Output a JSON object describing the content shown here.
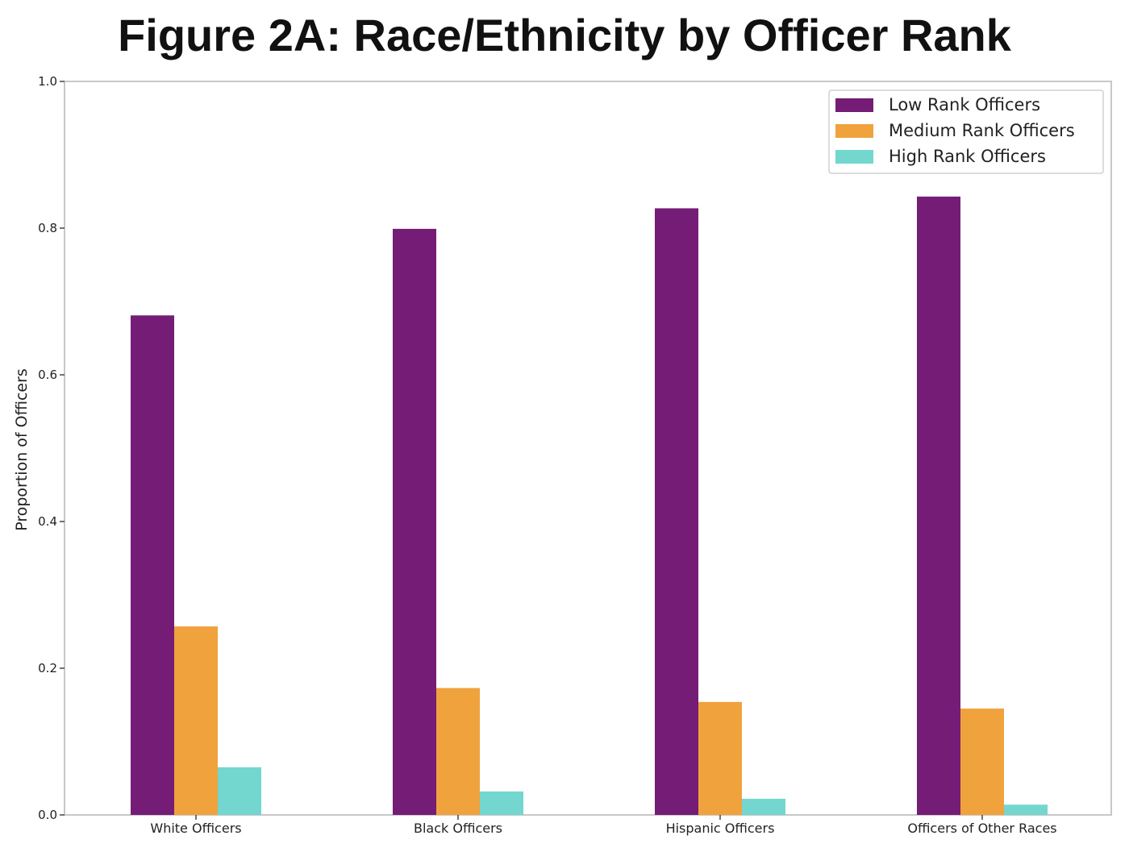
{
  "chart_data": {
    "type": "bar",
    "title": "Figure 2A: Race/Ethnicity by Officer Rank",
    "xlabel": "",
    "ylabel": "Proportion of Officers",
    "ylim": [
      0,
      1.0
    ],
    "yticks": [
      "0.0",
      "0.2",
      "0.4",
      "0.6",
      "0.8",
      "1.0"
    ],
    "categories": [
      "White Officers",
      "Black Officers",
      "Hispanic Officers",
      "Officers of Other Races"
    ],
    "series": [
      {
        "name": "Low Rank Officers",
        "color": "#751c77",
        "values": [
          0.681,
          0.799,
          0.827,
          0.843
        ]
      },
      {
        "name": "Medium Rank Officers",
        "color": "#f0a33c",
        "values": [
          0.257,
          0.173,
          0.154,
          0.145
        ]
      },
      {
        "name": "High Rank Officers",
        "color": "#74d7cf",
        "values": [
          0.065,
          0.032,
          0.022,
          0.014
        ]
      }
    ],
    "grid": false,
    "legend_position": "top-right"
  }
}
